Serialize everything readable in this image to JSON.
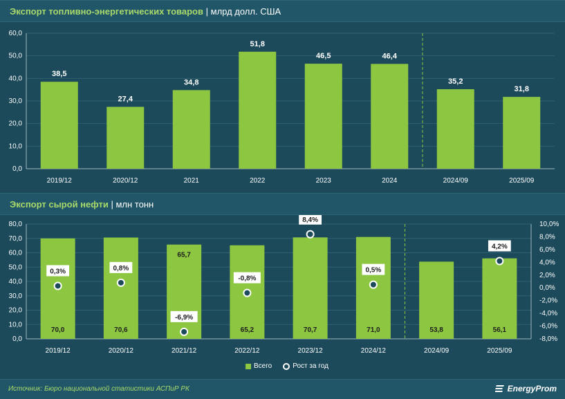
{
  "chart1": {
    "title": "Экспорт топливно-энергетических товаров",
    "unit": "млрд долл. США",
    "chart_data": {
      "type": "bar",
      "categories": [
        "2019/12",
        "2020/12",
        "2021",
        "2022",
        "2023",
        "2024",
        "2024/09",
        "2025/09"
      ],
      "values": [
        38.5,
        27.4,
        34.8,
        51.8,
        46.5,
        46.4,
        35.2,
        31.8
      ],
      "value_labels": [
        "38,5",
        "27,4",
        "34,8",
        "51,8",
        "46,5",
        "46,4",
        "35,2",
        "31,8"
      ],
      "ylim": [
        0,
        60
      ],
      "yticks": [
        "0,0",
        "10,0",
        "20,0",
        "30,0",
        "40,0",
        "50,0",
        "60,0"
      ],
      "divider_after_index": 5
    }
  },
  "chart2": {
    "title": "Экспорт сырой нефти",
    "unit": "млн тонн",
    "chart_data": {
      "type": "bar",
      "categories": [
        "2019/12",
        "2020/12",
        "2021/12",
        "2022/12",
        "2023/12",
        "2024/12",
        "2024/09",
        "2025/09"
      ],
      "series": [
        {
          "name": "Всего",
          "type": "bar",
          "axis": "left",
          "values": [
            70.0,
            70.6,
            65.7,
            65.2,
            70.7,
            71.0,
            53.8,
            56.1
          ],
          "value_labels": [
            "70,0",
            "70,6",
            "65,7",
            "65,2",
            "70,7",
            "71,0",
            "53,8",
            "56,1"
          ],
          "label_position": [
            "bottom",
            "bottom",
            "top",
            "bottom",
            "bottom",
            "bottom",
            "bottom",
            "bottom"
          ]
        },
        {
          "name": "Рост за год",
          "type": "scatter",
          "axis": "right",
          "values": [
            0.3,
            0.8,
            -6.9,
            -0.8,
            8.4,
            0.5,
            null,
            4.2
          ],
          "value_labels": [
            "0,3%",
            "0,8%",
            "-6,9%",
            "-0,8%",
            "8,4%",
            "0,5%",
            "",
            "4,2%"
          ]
        }
      ],
      "ylim_left": [
        0,
        80
      ],
      "yticks_left": [
        "0,0",
        "10,0",
        "20,0",
        "30,0",
        "40,0",
        "50,0",
        "60,0",
        "70,0",
        "80,0"
      ],
      "ylim_right": [
        -8,
        10
      ],
      "yticks_right": [
        "-8,0%",
        "-6,0%",
        "-4,0%",
        "-2,0%",
        "0,0%",
        "2,0%",
        "4,0%",
        "6,0%",
        "8,0%",
        "10,0%"
      ],
      "divider_after_index": 5
    }
  },
  "legend": {
    "bar": "Всего",
    "dot": "Рост за год"
  },
  "footer": {
    "source": "Источник: Бюро национальной статистики АСПиР РК",
    "brand": "EnergyProm"
  },
  "colors": {
    "bar": "#8dc641",
    "bg": "#1c4a5a",
    "accent": "#a8d96a",
    "divider": "#8dc641"
  }
}
